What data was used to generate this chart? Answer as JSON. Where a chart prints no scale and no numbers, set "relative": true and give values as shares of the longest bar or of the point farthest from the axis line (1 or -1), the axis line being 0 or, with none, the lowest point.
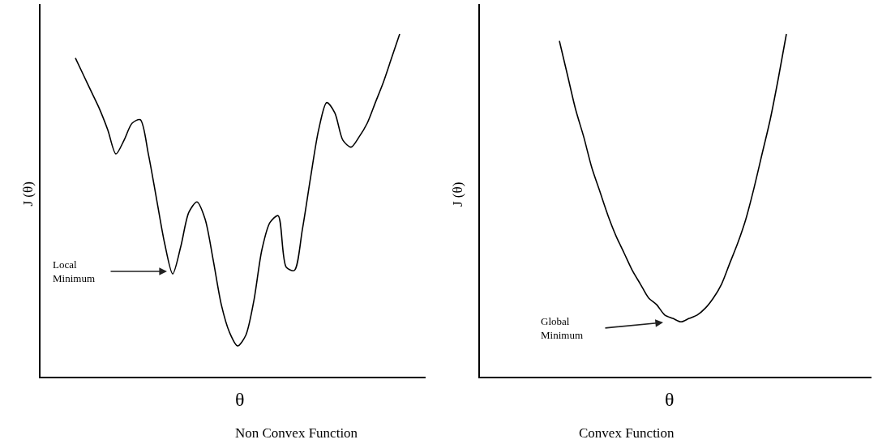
{
  "chart_data": [
    {
      "type": "line",
      "relative": true,
      "title": "Non Convex Function",
      "xlabel": "θ",
      "ylabel": "J (θ)",
      "color": "#000000",
      "marker": "none",
      "categories": [
        null,
        null,
        null,
        null,
        null,
        null,
        null,
        null,
        null,
        null,
        null,
        null,
        null,
        null,
        null,
        null,
        null,
        null,
        null,
        null,
        null,
        null,
        null,
        null,
        null,
        null,
        null,
        null,
        null,
        null,
        null,
        null,
        null,
        null,
        null,
        null,
        null,
        null,
        null,
        null,
        null
      ],
      "values": [
        0.93,
        0.88,
        0.83,
        0.78,
        0.72,
        0.65,
        0.69,
        0.74,
        0.75,
        0.65,
        0.52,
        0.39,
        0.3,
        0.38,
        0.48,
        0.51,
        0.46,
        0.34,
        0.21,
        0.13,
        0.09,
        0.12,
        0.22,
        0.37,
        0.45,
        0.47,
        0.32,
        0.31,
        0.43,
        0.58,
        0.72,
        0.8,
        0.77,
        0.69,
        0.67,
        0.7,
        0.74,
        0.8,
        0.86,
        0.93,
        1.0
      ],
      "annotations": [
        "Local\nMinimum"
      ]
    },
    {
      "type": "line",
      "relative": true,
      "title": "Convex Function",
      "xlabel": "θ",
      "ylabel": "J (θ)",
      "color": "#000000",
      "marker": "none",
      "categories": [
        null,
        null,
        null,
        null,
        null,
        null,
        null,
        null,
        null,
        null,
        null,
        null,
        null,
        null,
        null,
        null,
        null,
        null,
        null,
        null,
        null,
        null,
        null,
        null,
        null,
        null,
        null,
        null,
        null
      ],
      "values": [
        0.98,
        0.88,
        0.78,
        0.7,
        0.61,
        0.54,
        0.47,
        0.41,
        0.36,
        0.31,
        0.27,
        0.23,
        0.21,
        0.18,
        0.17,
        0.16,
        0.17,
        0.18,
        0.2,
        0.23,
        0.27,
        0.33,
        0.39,
        0.46,
        0.55,
        0.65,
        0.75,
        0.87,
        1.0
      ],
      "annotations": [
        "Global\nMinimum"
      ]
    }
  ]
}
